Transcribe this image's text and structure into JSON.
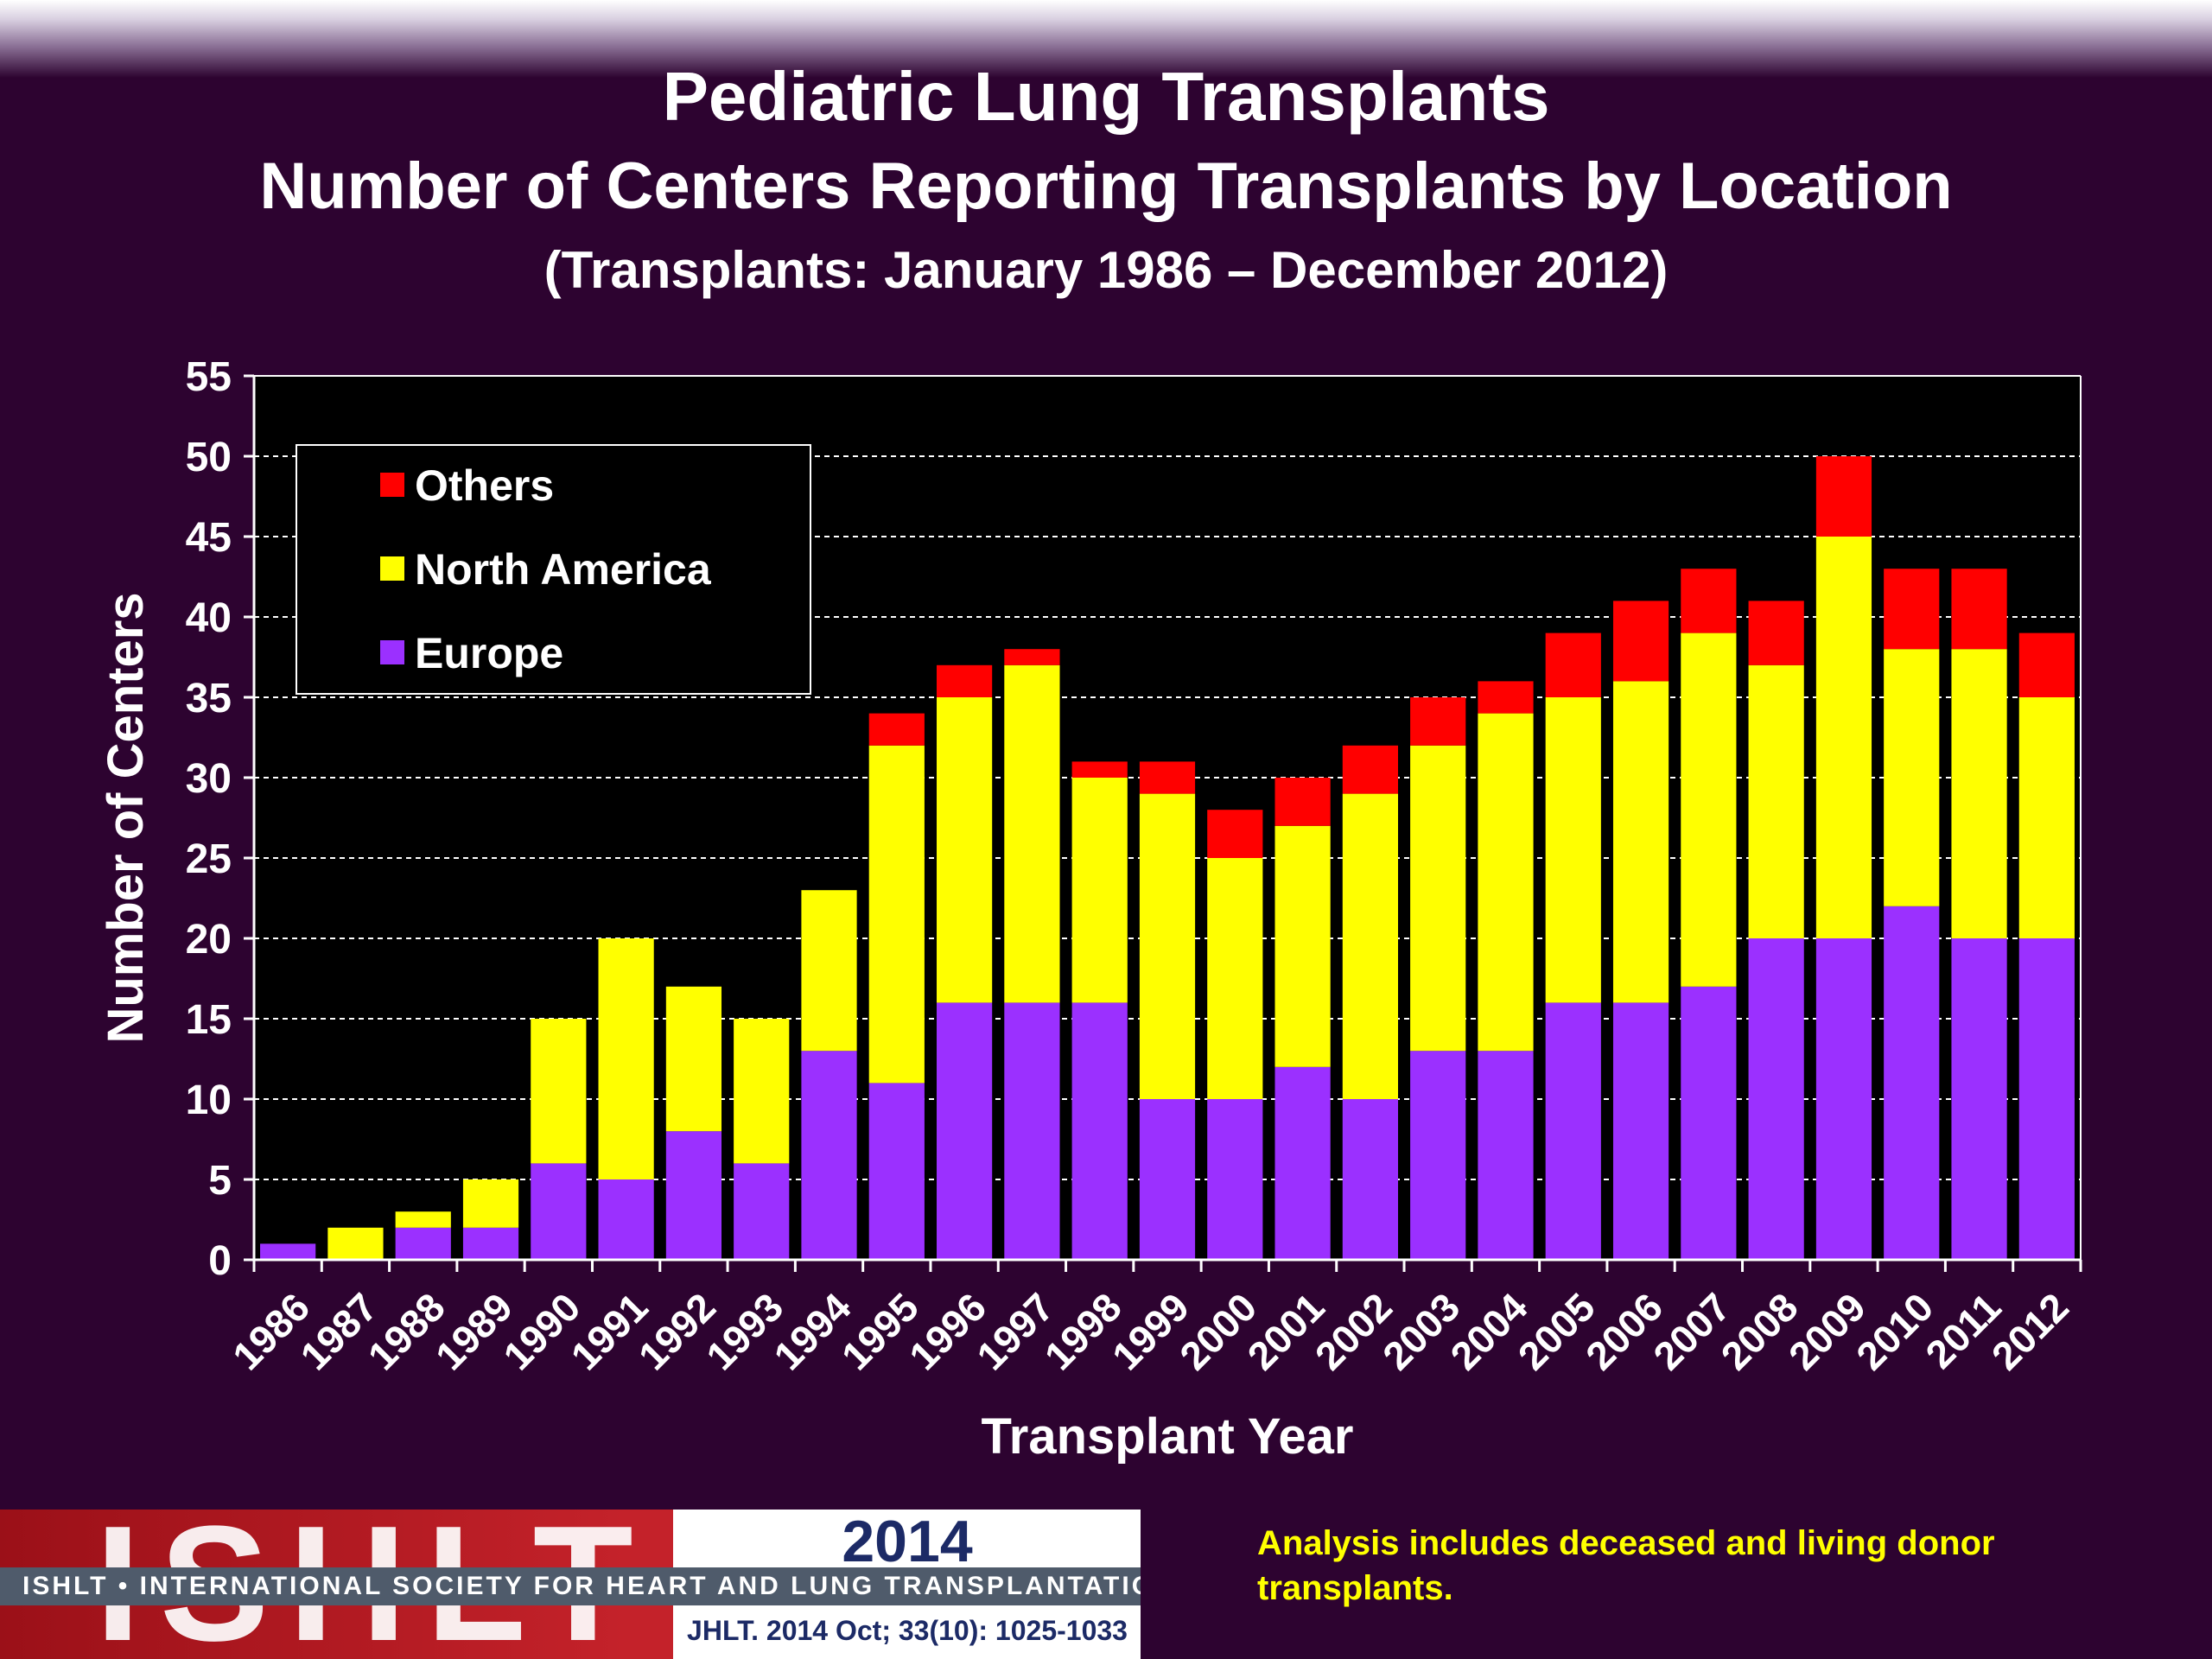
{
  "header": {
    "title": "Pediatric Lung Transplants",
    "subtitle": "Number of Centers Reporting Transplants by Location",
    "period": "(Transplants: January 1986 – December 2012)"
  },
  "chart_data": {
    "type": "bar",
    "stacked": true,
    "xlabel": "Transplant Year",
    "ylabel": "Number of Centers",
    "ylim": [
      0,
      55
    ],
    "yticks": [
      0,
      5,
      10,
      15,
      20,
      25,
      30,
      35,
      40,
      45,
      50,
      55
    ],
    "grid": true,
    "legend_position": "top-left",
    "categories": [
      "1986",
      "1987",
      "1988",
      "1989",
      "1990",
      "1991",
      "1992",
      "1993",
      "1994",
      "1995",
      "1996",
      "1997",
      "1998",
      "1999",
      "2000",
      "2001",
      "2002",
      "2003",
      "2004",
      "2005",
      "2006",
      "2007",
      "2008",
      "2009",
      "2010",
      "2011",
      "2012"
    ],
    "series": [
      {
        "name": "Europe",
        "color": "#9b30ff",
        "values": [
          1,
          0,
          2,
          2,
          6,
          5,
          8,
          6,
          13,
          11,
          16,
          16,
          16,
          10,
          10,
          12,
          10,
          13,
          13,
          16,
          16,
          17,
          20,
          20,
          22,
          20,
          20
        ]
      },
      {
        "name": "North America",
        "color": "#ffff00",
        "values": [
          0,
          2,
          1,
          3,
          9,
          15,
          9,
          9,
          10,
          21,
          19,
          21,
          14,
          19,
          15,
          15,
          19,
          19,
          21,
          19,
          20,
          22,
          17,
          25,
          16,
          18,
          15
        ]
      },
      {
        "name": "Others",
        "color": "#ff0000",
        "values": [
          0,
          0,
          0,
          0,
          0,
          0,
          0,
          0,
          0,
          2,
          2,
          1,
          1,
          2,
          3,
          3,
          3,
          3,
          2,
          4,
          5,
          4,
          4,
          5,
          5,
          5,
          4
        ]
      }
    ],
    "legend_order": [
      "Others",
      "North America",
      "Europe"
    ]
  },
  "footer": {
    "logo_letters": "ISHLT",
    "society": "ISHLT • INTERNATIONAL SOCIETY FOR HEART AND LUNG TRANSPLANTATION",
    "year": "2014",
    "citation": "JHLT. 2014 Oct; 33(10): 1025-1033",
    "note": "Analysis includes deceased and living donor transplants."
  }
}
